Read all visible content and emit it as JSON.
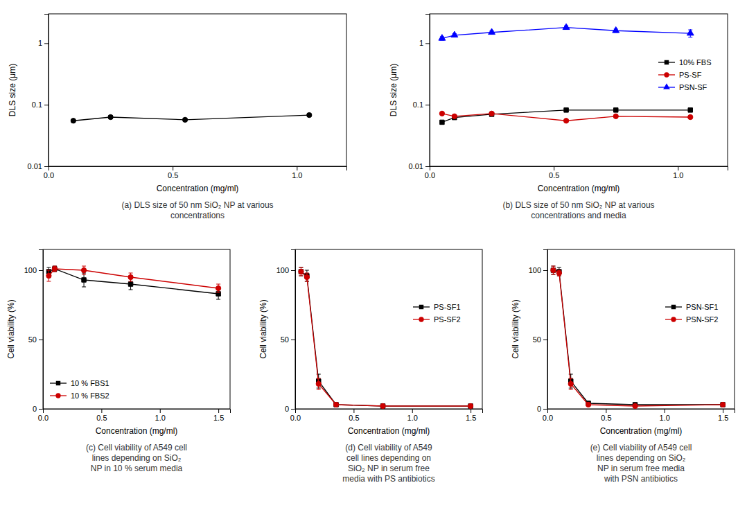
{
  "chart_data": [
    {
      "type": "line",
      "title": "(a) DLS size of 50 nm SiO₂ NP at various\nconcentrations",
      "x": [
        0.1,
        0.25,
        0.55,
        1.05
      ],
      "values": [
        0.055,
        0.063,
        0.057,
        0.068
      ],
      "errors": [
        0.003,
        0.004,
        0.003,
        0.004
      ],
      "color": "black",
      "marker": "circle",
      "x_label": "Concentration (mg/ml)",
      "y_label": "DLS size (μm)",
      "log": "y",
      "xlim": [
        0.0,
        1.2
      ],
      "ylim": [
        0.01,
        3.0
      ],
      "xticks": [
        {
          "value": 0.0,
          "label": "0.0"
        },
        0.5,
        {
          "value": 1.0,
          "label": "1.0"
        }
      ],
      "yticks": [
        0.01,
        0.1,
        1
      ]
    },
    {
      "type": "line",
      "title": "(b) DLS size of 50 nm SiO₂ NP at various\nconcentrations and media",
      "x": [
        0.05,
        0.1,
        0.25,
        0.55,
        0.75,
        1.05
      ],
      "series": [
        {
          "name": "10% FBS",
          "color": "black",
          "marker": "square",
          "values": [
            0.052,
            0.062,
            0.07,
            0.082,
            0.082,
            0.082
          ],
          "errors": [
            0.003,
            0.003,
            0.003,
            0.004,
            0.004,
            0.004
          ]
        },
        {
          "name": "PS-SF",
          "color": "#cc0000",
          "marker": "circle",
          "values": [
            0.072,
            0.065,
            0.072,
            0.055,
            0.065,
            0.063
          ],
          "errors": [
            0.004,
            0.003,
            0.004,
            0.003,
            0.003,
            0.003
          ]
        },
        {
          "name": "PSN-SF",
          "color": "blue",
          "marker": "triangle",
          "values": [
            1.2,
            1.35,
            1.5,
            1.8,
            1.6,
            1.45
          ],
          "errors": [
            0.08,
            0.08,
            0.1,
            0.12,
            0.1,
            0.2
          ]
        }
      ],
      "x_label": "Concentration (mg/ml)",
      "y_label": "DLS size (μm)",
      "log": "y",
      "legend": "right",
      "xlim": [
        0.0,
        1.2
      ],
      "ylim": [
        0.01,
        3.0
      ],
      "xticks": [
        {
          "value": 0.0,
          "label": "0.0"
        },
        0.5,
        {
          "value": 1.0,
          "label": "1.0"
        }
      ],
      "yticks": [
        0.01,
        0.1,
        1
      ]
    },
    {
      "type": "line",
      "title": "(c) Cell viability of A549 cell\nlines depending on SiO₂\nNP in 10 % serum media",
      "x": [
        0.05,
        0.1,
        0.35,
        0.75,
        1.5
      ],
      "series": [
        {
          "name": "10 % FBS1",
          "color": "black",
          "marker": "square",
          "values": [
            99,
            101,
            93,
            90,
            83
          ],
          "errors": [
            3,
            2,
            5,
            4,
            4
          ]
        },
        {
          "name": "10 % FBS2",
          "color": "#cc0000",
          "marker": "circle",
          "values": [
            96,
            101,
            100,
            95,
            87
          ],
          "errors": [
            4,
            2,
            3,
            3,
            3
          ]
        }
      ],
      "x_label": "Concentration (mg/ml)",
      "y_label": "Cell viability (%)",
      "legend": "lower left",
      "xlim": [
        0.0,
        1.6
      ],
      "ylim": [
        0,
        115
      ],
      "xticks": [
        {
          "value": 0.0,
          "label": "0.0"
        },
        0.5,
        {
          "value": 1.0,
          "label": "1.0"
        },
        1.5
      ],
      "yticks": [
        0,
        50,
        100
      ]
    },
    {
      "type": "line",
      "title": "(d) Cell viability of A549\ncell lines depending on\nSiO₂ NP in serum free\nmedia with PS antibiotics",
      "x": [
        0.05,
        0.1,
        0.2,
        0.35,
        0.75,
        1.5
      ],
      "series": [
        {
          "name": "PS-SF1",
          "color": "black",
          "marker": "square",
          "values": [
            99,
            96,
            20,
            3,
            2,
            2
          ],
          "errors": [
            3,
            4,
            5,
            1,
            1,
            1
          ]
        },
        {
          "name": "PS-SF2",
          "color": "#cc0000",
          "marker": "circle",
          "values": [
            99,
            95,
            18,
            3,
            2,
            2
          ],
          "errors": [
            3,
            3,
            4,
            1,
            1,
            1
          ]
        }
      ],
      "x_label": "Concentration (mg/ml)",
      "y_label": "Cell viability (%)",
      "legend": "right",
      "xlim": [
        0.0,
        1.6
      ],
      "ylim": [
        0,
        115
      ],
      "xticks": [
        {
          "value": 0.0,
          "label": "0.0"
        },
        0.5,
        {
          "value": 1.0,
          "label": "1.0"
        },
        1.5
      ],
      "yticks": [
        0,
        50,
        100
      ]
    },
    {
      "type": "line",
      "title": "(e) Cell viability of A549 cell\nlines depending on SiO₂\nNP in serum free media\nwith PSN antibiotics",
      "x": [
        0.05,
        0.1,
        0.2,
        0.35,
        0.75,
        1.5
      ],
      "series": [
        {
          "name": "PSN-SF1",
          "color": "black",
          "marker": "square",
          "values": [
            100,
            99,
            20,
            4,
            3,
            3
          ],
          "errors": [
            3,
            3,
            5,
            1,
            1,
            1
          ]
        },
        {
          "name": "PSN-SF2",
          "color": "#cc0000",
          "marker": "circle",
          "values": [
            100,
            98,
            18,
            3,
            2,
            3
          ],
          "errors": [
            3,
            2,
            4,
            1,
            1,
            1
          ]
        }
      ],
      "x_label": "Concentration (mg/ml)",
      "y_label": "Cell viability (%)",
      "legend": "right",
      "xlim": [
        0.0,
        1.6
      ],
      "ylim": [
        0,
        115
      ],
      "xticks": [
        {
          "value": 0.0,
          "label": "0.0"
        },
        0.5,
        {
          "value": 1.0,
          "label": "1.0"
        },
        1.5
      ],
      "yticks": [
        0,
        50,
        100
      ]
    }
  ]
}
